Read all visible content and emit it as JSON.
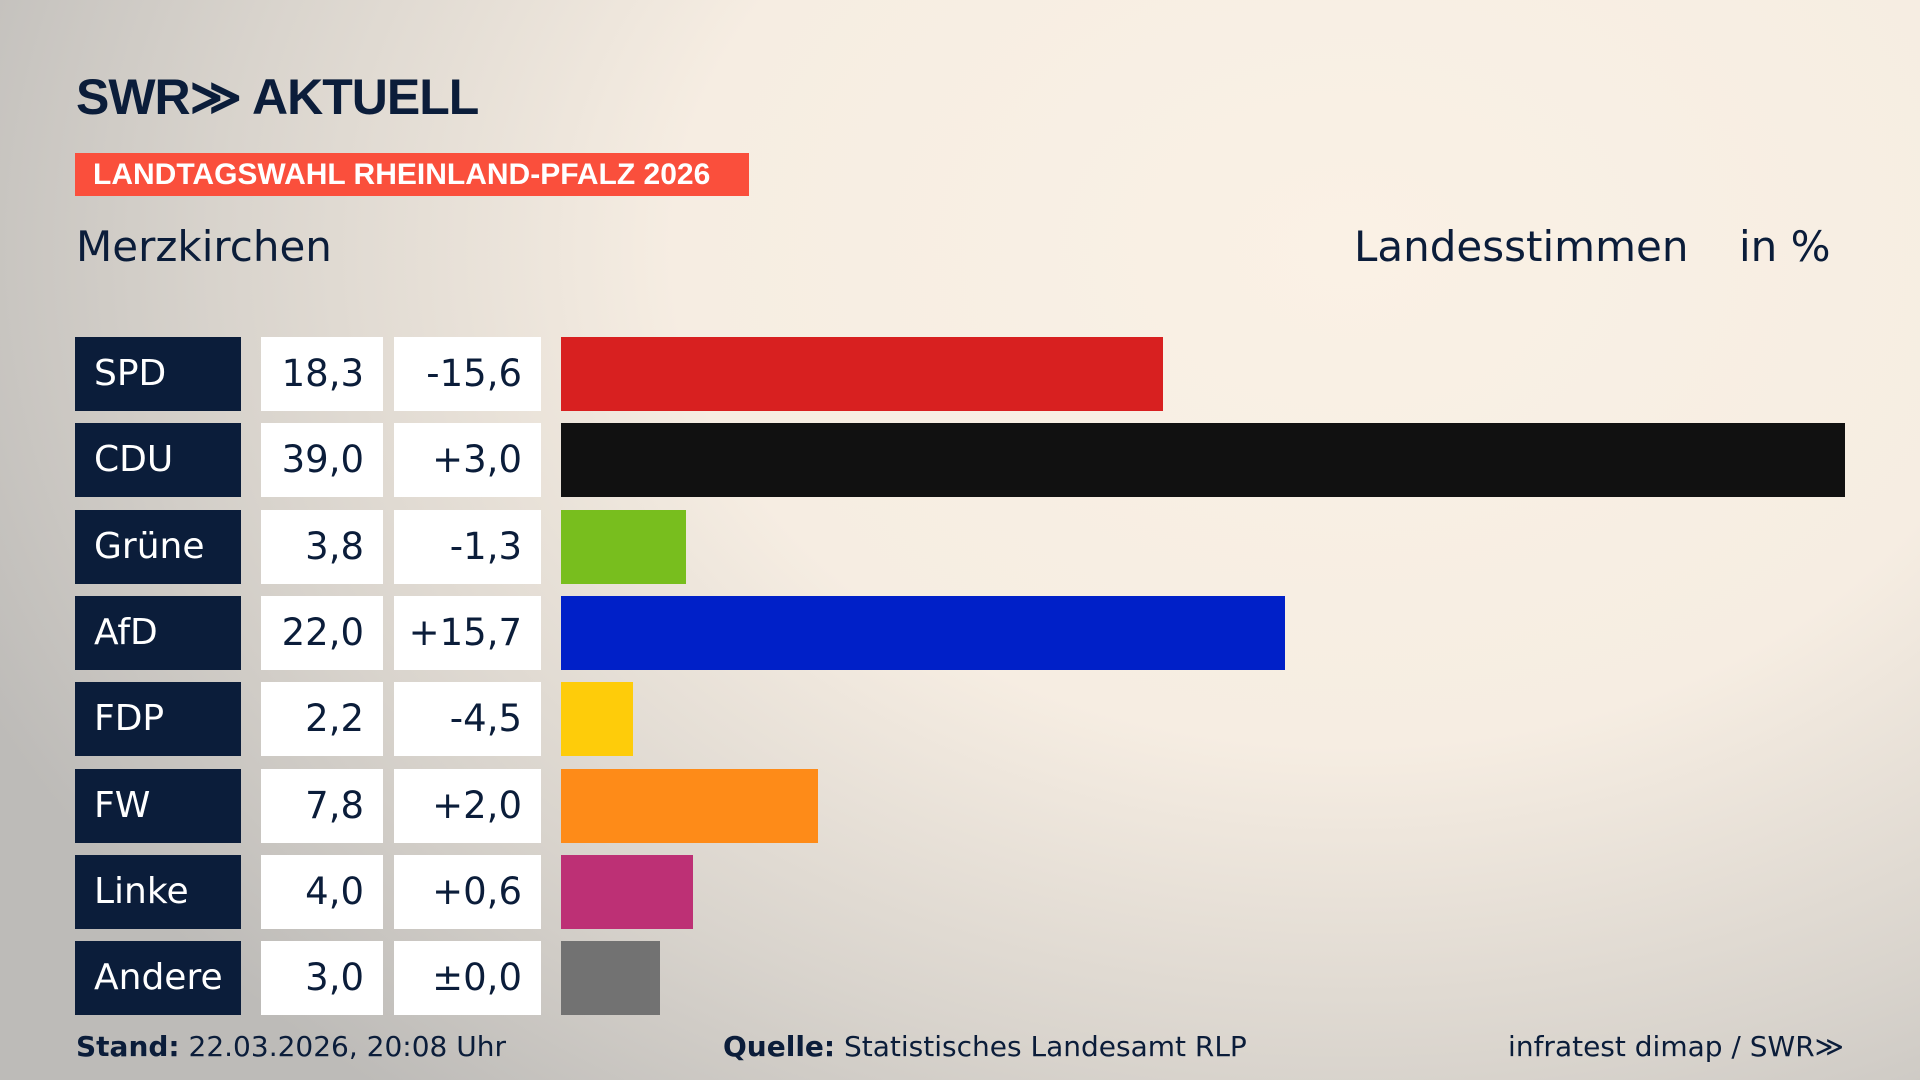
{
  "header": {
    "logo": "SWR≫ AKTUELL",
    "banner": "LANDTAGSWAHL RHEINLAND-PFALZ 2026",
    "place": "Merzkirchen",
    "metric": "Landesstimmen",
    "unit": "in %"
  },
  "chart_data": {
    "type": "bar",
    "orientation": "horizontal",
    "categories": [
      "SPD",
      "CDU",
      "Grüne",
      "AfD",
      "FDP",
      "FW",
      "Linke",
      "Andere"
    ],
    "values": [
      18.3,
      39.0,
      3.8,
      22.0,
      2.2,
      7.8,
      4.0,
      3.0
    ],
    "value_labels": [
      "18,3",
      "39,0",
      "3,8",
      "22,0",
      "2,2",
      "7,8",
      "4,0",
      "3,0"
    ],
    "diff_labels": [
      "-15,6",
      "+3,0",
      "-1,3",
      "+15,7",
      "-4,5",
      "+2,0",
      "+0,6",
      "±0,0"
    ],
    "colors": [
      "#d82020",
      "#111111",
      "#78be1e",
      "#0020c8",
      "#fecc0a",
      "#fe8b18",
      "#bd3075",
      "#727272"
    ]
  },
  "footer": {
    "stand_label": "Stand:",
    "stand_value": "22.03.2026, 20:08 Uhr",
    "source_label": "Quelle:",
    "source_value": "Statistisches Landesamt RLP",
    "credit": "infratest dimap / SWR≫"
  }
}
